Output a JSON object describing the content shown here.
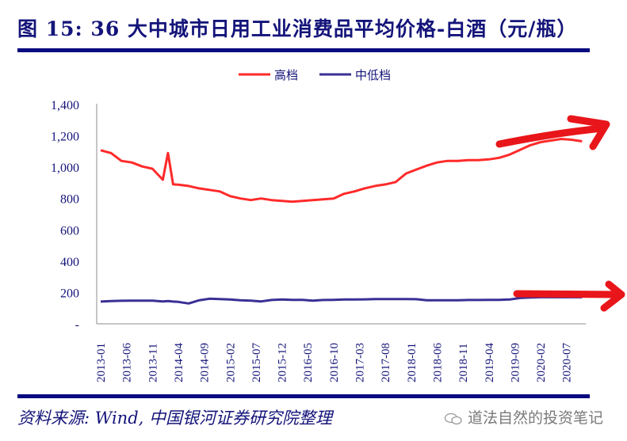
{
  "header": {
    "title": "图 15: 36 大中城市日用工业消费品平均价格-白酒（元/瓶）"
  },
  "footer": {
    "source": "资料来源: Wind, 中国银河证券研究院整理",
    "watermark": "道法自然的投资笔记"
  },
  "colors": {
    "title": "#14147a",
    "rule": "#0a0a80",
    "high_end": "#ff2a2a",
    "mid_low_end": "#3a2f96",
    "annotation_arrow": "#e8161a",
    "axis": "#8c8c8c"
  },
  "chart_data": {
    "type": "line",
    "title": "36大中城市日用工业消费品平均价格-白酒（元/瓶）",
    "xlabel": "",
    "ylabel": "元/瓶",
    "ylim": [
      0,
      1400
    ],
    "yticks": [
      "-",
      "200",
      "400",
      "600",
      "800",
      "1,000",
      "1,200",
      "1,400"
    ],
    "ytick_values": [
      0,
      200,
      400,
      600,
      800,
      1000,
      1200,
      1400
    ],
    "xticks": [
      "2013-01",
      "2013-06",
      "2013-11",
      "2014-04",
      "2014-09",
      "2015-02",
      "2015-07",
      "2015-12",
      "2016-05",
      "2016-10",
      "2017-03",
      "2017-08",
      "2018-01",
      "2018-06",
      "2018-11",
      "2019-04",
      "2019-09",
      "2020-02",
      "2020-07"
    ],
    "grid": false,
    "legend_position": "top",
    "x": [
      "2013-01",
      "2013-03",
      "2013-05",
      "2013-07",
      "2013-09",
      "2013-11",
      "2014-01",
      "2014-02",
      "2014-03",
      "2014-04",
      "2014-06",
      "2014-08",
      "2014-10",
      "2014-12",
      "2015-02",
      "2015-04",
      "2015-06",
      "2015-08",
      "2015-10",
      "2015-12",
      "2016-02",
      "2016-04",
      "2016-06",
      "2016-08",
      "2016-10",
      "2016-12",
      "2017-02",
      "2017-04",
      "2017-06",
      "2017-08",
      "2017-10",
      "2017-12",
      "2018-02",
      "2018-04",
      "2018-06",
      "2018-08",
      "2018-10",
      "2018-12",
      "2019-02",
      "2019-04",
      "2019-06",
      "2019-08",
      "2019-10",
      "2019-12",
      "2020-02",
      "2020-04",
      "2020-06",
      "2020-08",
      "2020-10"
    ],
    "series": [
      {
        "name": "高档",
        "color": "#ff2a2a",
        "values": [
          1108,
          1090,
          1040,
          1030,
          1005,
          990,
          920,
          1090,
          890,
          888,
          880,
          865,
          855,
          845,
          815,
          800,
          790,
          800,
          790,
          785,
          780,
          785,
          790,
          795,
          800,
          830,
          845,
          865,
          880,
          890,
          905,
          960,
          985,
          1010,
          1030,
          1040,
          1040,
          1045,
          1045,
          1050,
          1060,
          1080,
          1110,
          1140,
          1160,
          1170,
          1180,
          1175,
          1165
        ]
      },
      {
        "name": "中低档",
        "color": "#3a2f96",
        "values": [
          142,
          145,
          147,
          148,
          148,
          148,
          143,
          145,
          142,
          140,
          130,
          150,
          160,
          158,
          155,
          150,
          148,
          143,
          152,
          155,
          153,
          153,
          148,
          152,
          153,
          155,
          155,
          156,
          158,
          158,
          158,
          158,
          157,
          150,
          150,
          150,
          150,
          152,
          152,
          153,
          153,
          155,
          165,
          168,
          170,
          170,
          170,
          170,
          170
        ]
      }
    ],
    "annotations": [
      {
        "type": "hand-drawn-arrow",
        "target_series": "高档",
        "direction": "up-right"
      },
      {
        "type": "hand-drawn-arrow",
        "target_series": "中低档",
        "direction": "right"
      }
    ]
  }
}
